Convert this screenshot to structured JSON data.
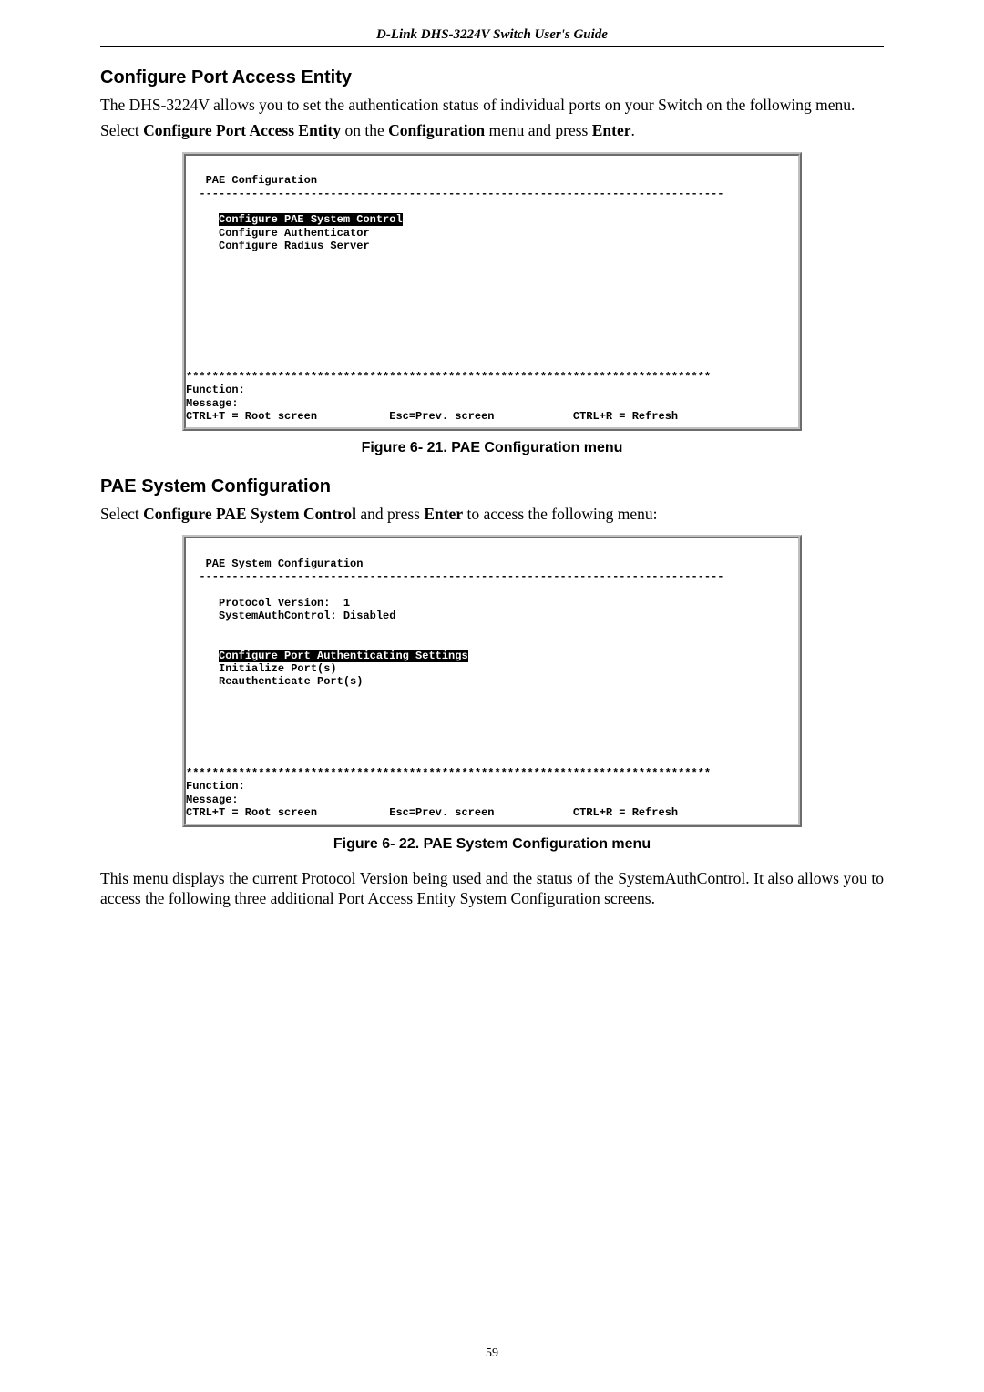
{
  "doc_header": "D-Link DHS-3224V Switch User's Guide",
  "section1": {
    "heading": "Configure Port Access Entity",
    "para1": "The DHS-3224V allows you to set the authentication status of individual ports on your Switch on the following menu.",
    "para2_pre": "Select ",
    "para2_b1": "Configure Port Access Entity",
    "para2_mid": " on the ",
    "para2_b2": "Configuration",
    "para2_mid2": " menu and press ",
    "para2_b3": "Enter",
    "para2_end": "."
  },
  "terminal1": {
    "title": "PAE Configuration",
    "dashline": "  --------------------------------------------------------------------------------",
    "item_hl": "Configure PAE System Control",
    "item2": "Configure Authenticator",
    "item3": "Configure Radius Server",
    "stars": "********************************************************************************",
    "func": "Function:",
    "msg": "Message:",
    "bottom_left": "CTRL+T = Root screen",
    "bottom_mid": "Esc=Prev. screen",
    "bottom_right": "CTRL+R = Refresh"
  },
  "fig1_caption": "Figure 6- 21.  PAE Configuration menu",
  "section2": {
    "heading": "PAE System Configuration",
    "para_pre": "Select ",
    "para_b1": "Configure PAE System Control",
    "para_mid": " and press ",
    "para_b2": "Enter",
    "para_end": " to access the following menu:"
  },
  "terminal2": {
    "title": "PAE System Configuration",
    "dashline": "  --------------------------------------------------------------------------------",
    "line1": "Protocol Version:  1",
    "line2": "SystemAuthControl: Disabled",
    "item_hl": "Configure Port Authenticating Settings",
    "item2": "Initialize Port(s)",
    "item3": "Reauthenticate Port(s)",
    "stars": "********************************************************************************",
    "func": "Function:",
    "msg": "Message:",
    "bottom_left": "CTRL+T = Root screen",
    "bottom_mid": "Esc=Prev. screen",
    "bottom_right": "CTRL+R = Refresh"
  },
  "fig2_caption": "Figure 6- 22.  PAE System Configuration menu",
  "closing_para": "This menu displays the current Protocol Version being used and the status of the SystemAuthControl. It also allows you to access the following three additional Port Access Entity System Configuration screens.",
  "page_number": "59"
}
